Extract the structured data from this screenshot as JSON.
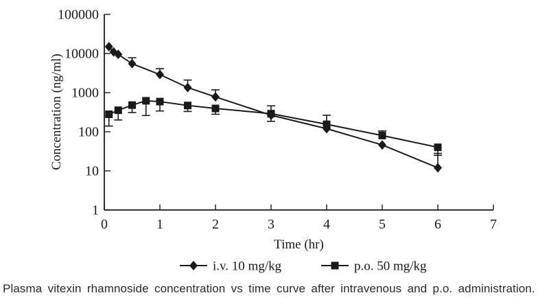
{
  "caption": {
    "text": "Plasma vitexin rhamnoside concentration vs time curve after intravenous and p.o. administration."
  },
  "chart_data": {
    "type": "line",
    "title": "",
    "xlabel": "Time (hr)",
    "ylabel": "Concentration (ng/ml)",
    "x_ticks": [
      0,
      1,
      2,
      3,
      4,
      5,
      6,
      7
    ],
    "y_ticks": [
      1,
      10,
      100,
      1000,
      10000,
      100000
    ],
    "xlim": [
      0,
      7
    ],
    "ylim": [
      1,
      100000
    ],
    "y_scale": "log",
    "grid": false,
    "legend_position": "bottom",
    "line_color": "#1a1a1a",
    "series": [
      {
        "name": "i.v. 10 mg/kg",
        "marker": "diamond",
        "points": [
          {
            "t": 0.083,
            "v": 15000
          },
          {
            "t": 0.167,
            "v": 11000
          },
          {
            "t": 0.25,
            "v": 9500
          },
          {
            "t": 0.5,
            "v": 5500,
            "hi": 7800
          },
          {
            "t": 1,
            "v": 2900,
            "hi": 4100
          },
          {
            "t": 1.5,
            "v": 1350,
            "hi": 2100
          },
          {
            "t": 2,
            "v": 780,
            "hi": 1180
          },
          {
            "t": 3,
            "v": 265
          },
          {
            "t": 4,
            "v": 120
          },
          {
            "t": 5,
            "v": 46
          },
          {
            "t": 6,
            "v": 12,
            "hi": 28
          }
        ]
      },
      {
        "name": "p.o. 50 mg/kg",
        "marker": "square",
        "points": [
          {
            "t": 0.083,
            "v": 280,
            "lo": 140
          },
          {
            "t": 0.25,
            "v": 355,
            "lo": 200
          },
          {
            "t": 0.5,
            "v": 480,
            "lo": 310
          },
          {
            "t": 0.75,
            "v": 620,
            "lo": 260
          },
          {
            "t": 1,
            "v": 590,
            "lo": 340
          },
          {
            "t": 1.5,
            "v": 470,
            "lo": 330
          },
          {
            "t": 2,
            "v": 395,
            "lo": 280
          },
          {
            "t": 3,
            "v": 290,
            "lo": 185,
            "hi": 460
          },
          {
            "t": 4,
            "v": 155,
            "hi": 265
          },
          {
            "t": 5,
            "v": 80,
            "hi": 105
          },
          {
            "t": 6,
            "v": 40,
            "lo": 25
          }
        ]
      }
    ]
  }
}
